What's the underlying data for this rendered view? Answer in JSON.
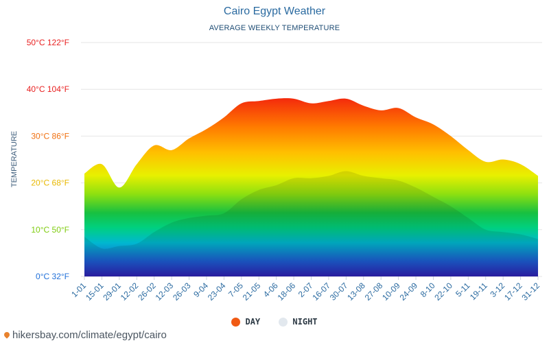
{
  "title": "Cairo Egypt Weather",
  "subtitle": "AVERAGE WEEKLY TEMPERATURE",
  "ylabel": "TEMPERATURE",
  "legend": {
    "day": "DAY",
    "night": "NIGHT"
  },
  "colors": {
    "day_dot": "#f05a14",
    "night_dot": "#e2e8ee",
    "grid": "#e6e6e6"
  },
  "source": "hikersbay.com/climate/egypt/cairo",
  "chart_data": {
    "type": "area",
    "title": "Cairo Egypt Weather",
    "subtitle": "AVERAGE WEEKLY TEMPERATURE",
    "ylabel": "TEMPERATURE",
    "ylim": [
      0,
      50
    ],
    "yticks": [
      {
        "value": 0,
        "label": "0°C 32°F",
        "color": "#1f6fd8"
      },
      {
        "value": 10,
        "label": "10°C 50°F",
        "color": "#7fcc10"
      },
      {
        "value": 20,
        "label": "20°C 68°F",
        "color": "#e8b800"
      },
      {
        "value": 30,
        "label": "30°C 86°F",
        "color": "#f07010"
      },
      {
        "value": 40,
        "label": "40°C 104°F",
        "color": "#e81f1f"
      },
      {
        "value": 50,
        "label": "50°C 122°F",
        "color": "#e81f1f"
      }
    ],
    "categories": [
      "1-01",
      "15-01",
      "29-01",
      "12-02",
      "26-02",
      "12-03",
      "26-03",
      "9-04",
      "23-04",
      "7-05",
      "21-05",
      "4-06",
      "18-06",
      "2-07",
      "16-07",
      "30-07",
      "13-08",
      "27-08",
      "10-09",
      "24-09",
      "8-10",
      "22-10",
      "5-11",
      "19-11",
      "3-12",
      "17-12",
      "31-12"
    ],
    "series": [
      {
        "name": "DAY",
        "values": [
          22.0,
          24.0,
          19.0,
          24.0,
          28.0,
          27.0,
          29.5,
          31.5,
          34.0,
          37.0,
          37.5,
          38.0,
          38.0,
          37.0,
          37.5,
          38.0,
          36.5,
          35.5,
          36.0,
          34.0,
          32.5,
          30.0,
          27.0,
          24.5,
          25.0,
          24.0,
          21.5
        ]
      },
      {
        "name": "NIGHT",
        "values": [
          8.5,
          6.0,
          6.5,
          7.0,
          9.5,
          11.5,
          12.5,
          13.0,
          13.5,
          16.5,
          18.5,
          19.5,
          21.0,
          21.0,
          21.5,
          22.5,
          21.5,
          21.0,
          20.5,
          19.0,
          17.0,
          15.0,
          12.5,
          10.0,
          9.5,
          9.0,
          8.0
        ]
      }
    ],
    "grid": true,
    "legend_position": "bottom"
  }
}
